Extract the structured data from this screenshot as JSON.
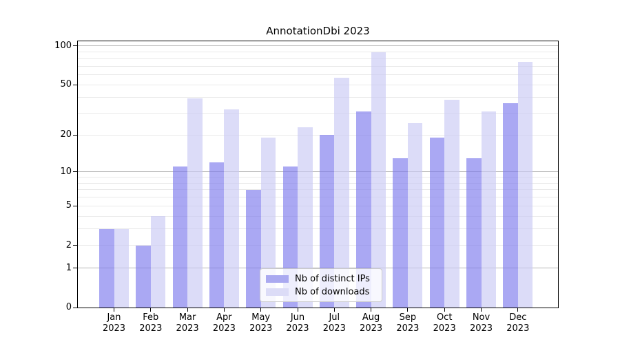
{
  "figure": {
    "title": "AnnotationDbi 2023"
  },
  "chart_data": {
    "type": "bar",
    "title": "AnnotationDbi 2023",
    "x_tick_line1": [
      "Jan",
      "Feb",
      "Mar",
      "Apr",
      "May",
      "Jun",
      "Jul",
      "Aug",
      "Sep",
      "Oct",
      "Nov",
      "Dec"
    ],
    "x_tick_line2": "2023",
    "categories": [
      "Jan 2023",
      "Feb 2023",
      "Mar 2023",
      "Apr 2023",
      "May 2023",
      "Jun 2023",
      "Jul 2023",
      "Aug 2023",
      "Sep 2023",
      "Oct 2023",
      "Nov 2023",
      "Dec 2023"
    ],
    "series": [
      {
        "name": "Nb of distinct IPs",
        "values": [
          3,
          2,
          11,
          12,
          7,
          11,
          20,
          31,
          13,
          19,
          13,
          36
        ]
      },
      {
        "name": "Nb of downloads",
        "values": [
          3,
          4,
          39,
          32,
          19,
          23,
          57,
          89,
          25,
          38,
          31,
          75
        ]
      }
    ],
    "yscale": "log1p",
    "ylim": [
      0,
      110
    ],
    "y_ticks": [
      0,
      1,
      2,
      5,
      10,
      20,
      50,
      100
    ],
    "y_major_gridlines": [
      1,
      10,
      100
    ],
    "y_minor_gridlines": [
      2,
      3,
      4,
      5,
      6,
      7,
      8,
      9,
      20,
      30,
      40,
      50,
      60,
      70,
      80,
      90
    ],
    "legend_position": "lower center",
    "grid": true,
    "colors": {
      "bar_distinct_ips": "#aaa9f0",
      "bar_downloads": "#dcdcf7",
      "bar_fill_distinct_ips": "rgba(124,122,237,0.65)",
      "bar_fill_downloads": "rgba(201,201,244,0.65)",
      "grid_major": "#b5b5b5",
      "grid_minor": "#e9e9e9",
      "axis": "#000000",
      "legend_border": "#cccccc"
    }
  }
}
